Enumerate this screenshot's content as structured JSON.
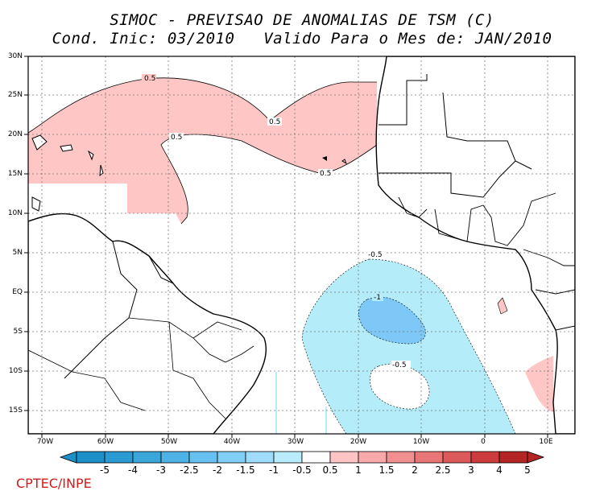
{
  "title": {
    "line1": "SIMOC - PREVISAO DE ANOMALIAS DE TSM (C)",
    "line2": "Cond. Inic: 03/2010   Valido Para o Mes de: JAN/2010"
  },
  "lat_labels": [
    "30N",
    "25N",
    "20N",
    "15N",
    "10N",
    "5N",
    "EQ",
    "5S",
    "10S",
    "15S"
  ],
  "lon_labels": [
    "70W",
    "60W",
    "50W",
    "40W",
    "30W",
    "20W",
    "10W",
    "0",
    "10E"
  ],
  "contour_labels": [
    "0.5",
    "0.5",
    "0.5",
    "0.5",
    "-0.5",
    "-1",
    "-0.5"
  ],
  "colorbar": {
    "labels": [
      "-5",
      "-4",
      "-3",
      "-2.5",
      "-2",
      "-1.5",
      "-1",
      "-0.5",
      "0.5",
      "1",
      "1.5",
      "2",
      "2.5",
      "3",
      "4",
      "5"
    ],
    "colors": [
      "#1c8ec8",
      "#2a9ad2",
      "#3aa6dc",
      "#4fb2e6",
      "#66c0f0",
      "#80cdf6",
      "#9edcfa",
      "#b8ecfc",
      "#ffffff",
      "#ffc4c4",
      "#f8aaaa",
      "#f09090",
      "#e87676",
      "#de5a5a",
      "#cc3c3c",
      "#b42424"
    ]
  },
  "legend_colors": {
    "positive_anomaly": "#ffc6c6",
    "negative_anomaly": "#b4ecfa",
    "strong_negative_anomaly": "#7ec8f8",
    "land_outline": "#000000"
  },
  "credit": "CPTEC/INPE"
}
